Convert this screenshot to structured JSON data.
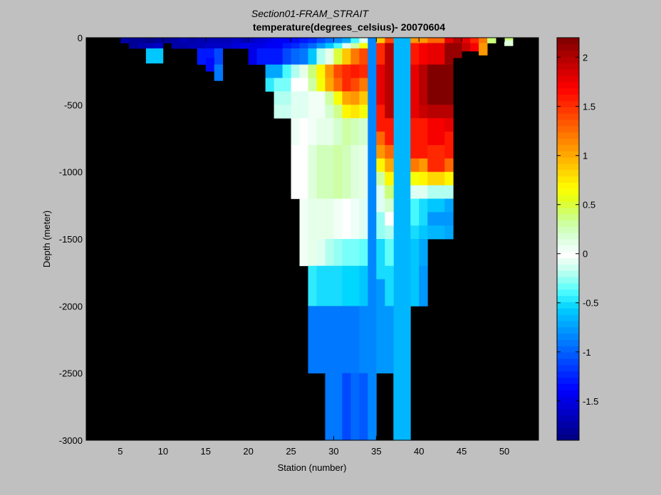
{
  "chart_data": {
    "type": "heatmap",
    "title": "Section01-FRAM_STRAIT",
    "subtitle": "temperature(degrees_celsius)- 20070604",
    "xlabel": "Station (number)",
    "ylabel": "Depth (meter)",
    "xlim": [
      1,
      54
    ],
    "ylim": [
      -3000,
      0
    ],
    "x_ticks": [
      5,
      10,
      15,
      20,
      25,
      30,
      35,
      40,
      45,
      50
    ],
    "y_ticks": [
      0,
      -500,
      -1000,
      -1500,
      -2000,
      -2500,
      -3000
    ],
    "background": "#000000",
    "colorbar": {
      "ticks": [
        2,
        1.5,
        1,
        0.5,
        0,
        -0.5,
        -1,
        -1.5
      ],
      "clim": [
        -1.9,
        2.2
      ]
    },
    "cells": [
      [
        5,
        6,
        0,
        40,
        -1.75
      ],
      [
        6,
        7,
        0,
        40,
        -1.8
      ],
      [
        7,
        8,
        0,
        40,
        -1.8
      ],
      [
        8,
        9,
        0,
        40,
        -1.85
      ],
      [
        9,
        10,
        0,
        40,
        -1.8
      ],
      [
        10,
        11,
        0,
        40,
        -1.8
      ],
      [
        11,
        12,
        0,
        40,
        -1.75
      ],
      [
        12,
        13,
        0,
        40,
        -1.7
      ],
      [
        13,
        14,
        0,
        40,
        -1.75
      ],
      [
        14,
        15,
        0,
        40,
        -1.7
      ],
      [
        15,
        16,
        0,
        40,
        -1.7
      ],
      [
        16,
        17,
        0,
        40,
        -1.7
      ],
      [
        17,
        18,
        0,
        40,
        -1.65
      ],
      [
        18,
        19,
        0,
        40,
        -1.6
      ],
      [
        19,
        20,
        0,
        40,
        -1.65
      ],
      [
        20,
        21,
        0,
        40,
        -1.6
      ],
      [
        21,
        22,
        0,
        40,
        -1.55
      ],
      [
        22,
        23,
        0,
        40,
        -1.5
      ],
      [
        23,
        24,
        0,
        40,
        -1.45
      ],
      [
        24,
        25,
        0,
        40,
        -1.4
      ],
      [
        25,
        26,
        0,
        40,
        -1.35
      ],
      [
        26,
        27,
        0,
        40,
        -1.3
      ],
      [
        27,
        28,
        0,
        40,
        -1.2
      ],
      [
        28,
        29,
        0,
        40,
        -1.1
      ],
      [
        29,
        30,
        0,
        40,
        -1.0
      ],
      [
        30,
        31,
        0,
        40,
        -0.85
      ],
      [
        31,
        32,
        0,
        40,
        -0.7
      ],
      [
        32,
        33,
        0,
        40,
        -0.4
      ],
      [
        33,
        34,
        0,
        40,
        -0.1
      ],
      [
        6,
        7,
        40,
        80,
        -1.8
      ],
      [
        7,
        8,
        40,
        80,
        -1.75
      ],
      [
        8,
        9,
        40,
        80,
        -1.7
      ],
      [
        9,
        10,
        40,
        80,
        -1.6
      ],
      [
        11,
        12,
        40,
        80,
        -1.75
      ],
      [
        12,
        13,
        40,
        80,
        -1.75
      ],
      [
        13,
        14,
        40,
        80,
        -1.7
      ],
      [
        14,
        15,
        40,
        80,
        -1.7
      ],
      [
        15,
        16,
        40,
        80,
        -1.6
      ],
      [
        16,
        17,
        40,
        80,
        -1.6
      ],
      [
        17,
        18,
        40,
        80,
        -1.6
      ],
      [
        18,
        19,
        40,
        80,
        -1.55
      ],
      [
        19,
        20,
        40,
        80,
        -1.5
      ],
      [
        20,
        21,
        40,
        80,
        -1.5
      ],
      [
        21,
        22,
        40,
        80,
        -1.5
      ],
      [
        22,
        23,
        40,
        80,
        -1.45
      ],
      [
        23,
        24,
        40,
        80,
        -1.4
      ],
      [
        24,
        25,
        40,
        80,
        -1.3
      ],
      [
        25,
        26,
        40,
        80,
        -1.2
      ],
      [
        26,
        27,
        40,
        80,
        -1.1
      ],
      [
        27,
        28,
        40,
        80,
        -0.95
      ],
      [
        28,
        29,
        40,
        80,
        -0.8
      ],
      [
        29,
        30,
        40,
        80,
        -0.6
      ],
      [
        30,
        31,
        40,
        80,
        -0.4
      ],
      [
        31,
        32,
        40,
        80,
        -0.1
      ],
      [
        32,
        33,
        40,
        80,
        0.3
      ],
      [
        33,
        34,
        40,
        80,
        0.6
      ],
      [
        8,
        10,
        80,
        190,
        -0.6
      ],
      [
        14,
        16,
        80,
        150,
        -1.3
      ],
      [
        16,
        17,
        80,
        200,
        -1.1
      ],
      [
        20,
        21,
        80,
        200,
        -1.5
      ],
      [
        21,
        24,
        80,
        200,
        -1.3
      ],
      [
        24,
        25,
        80,
        200,
        -1.1
      ],
      [
        25,
        26,
        80,
        200,
        -1.0
      ],
      [
        26,
        27,
        80,
        200,
        -0.9
      ],
      [
        27,
        28,
        80,
        200,
        -0.6
      ],
      [
        28,
        29,
        80,
        200,
        -0.2
      ],
      [
        29,
        30,
        80,
        200,
        0.1
      ],
      [
        30,
        31,
        80,
        200,
        0.5
      ],
      [
        31,
        32,
        80,
        200,
        0.9
      ],
      [
        32,
        33,
        80,
        200,
        1.2
      ],
      [
        33,
        34,
        80,
        200,
        1.4
      ],
      [
        14,
        15,
        150,
        200,
        -1.3
      ],
      [
        15,
        16,
        150,
        250,
        -1.35
      ],
      [
        16,
        17,
        200,
        320,
        -0.9
      ],
      [
        22,
        24,
        200,
        300,
        -0.7
      ],
      [
        24,
        25,
        200,
        300,
        -0.4
      ],
      [
        25,
        26,
        200,
        300,
        -0.2
      ],
      [
        26,
        27,
        200,
        300,
        0.1
      ],
      [
        27,
        28,
        200,
        300,
        0.4
      ],
      [
        28,
        29,
        200,
        300,
        0.7
      ],
      [
        29,
        30,
        200,
        300,
        1.1
      ],
      [
        30,
        31,
        200,
        300,
        1.4
      ],
      [
        31,
        32,
        200,
        300,
        1.5
      ],
      [
        32,
        33,
        200,
        300,
        1.6
      ],
      [
        33,
        34,
        200,
        300,
        1.5
      ],
      [
        22,
        23,
        300,
        400,
        -0.45
      ],
      [
        23,
        25,
        300,
        400,
        -0.3
      ],
      [
        25,
        27,
        300,
        400,
        0.0
      ],
      [
        27,
        28,
        300,
        400,
        0.3
      ],
      [
        28,
        29,
        300,
        400,
        0.6
      ],
      [
        29,
        30,
        300,
        400,
        1.0
      ],
      [
        30,
        31,
        300,
        400,
        1.3
      ],
      [
        31,
        32,
        300,
        400,
        1.5
      ],
      [
        32,
        33,
        300,
        400,
        1.4
      ],
      [
        33,
        34,
        300,
        400,
        1.2
      ],
      [
        23,
        25,
        400,
        500,
        -0.2
      ],
      [
        25,
        27,
        400,
        500,
        -0.1
      ],
      [
        27,
        29,
        400,
        500,
        0.05
      ],
      [
        29,
        30,
        400,
        500,
        0.3
      ],
      [
        30,
        31,
        400,
        500,
        0.6
      ],
      [
        31,
        32,
        400,
        500,
        1.0
      ],
      [
        32,
        33,
        400,
        500,
        1.1
      ],
      [
        33,
        34,
        400,
        500,
        0.9
      ],
      [
        23,
        25,
        500,
        600,
        -0.15
      ],
      [
        25,
        27,
        500,
        600,
        -0.1
      ],
      [
        27,
        29,
        500,
        600,
        0.05
      ],
      [
        29,
        30,
        500,
        600,
        0.2
      ],
      [
        30,
        31,
        500,
        600,
        0.35
      ],
      [
        31,
        32,
        500,
        600,
        0.7
      ],
      [
        32,
        33,
        500,
        600,
        0.75
      ],
      [
        33,
        34,
        500,
        600,
        0.6
      ],
      [
        25,
        26,
        600,
        800,
        -0.05
      ],
      [
        26,
        27,
        600,
        800,
        0.0
      ],
      [
        27,
        28,
        600,
        800,
        0.05
      ],
      [
        28,
        30,
        600,
        800,
        0.1
      ],
      [
        30,
        31,
        600,
        800,
        0.2
      ],
      [
        31,
        32,
        600,
        800,
        0.3
      ],
      [
        32,
        33,
        600,
        800,
        0.25
      ],
      [
        33,
        34,
        600,
        800,
        0.2
      ],
      [
        25,
        27,
        800,
        1200,
        0.0
      ],
      [
        27,
        28,
        800,
        1200,
        0.15
      ],
      [
        28,
        30,
        800,
        1200,
        0.25
      ],
      [
        30,
        31,
        800,
        1200,
        0.3
      ],
      [
        31,
        32,
        800,
        1200,
        0.25
      ],
      [
        32,
        33,
        800,
        1200,
        0.15
      ],
      [
        33,
        34,
        800,
        1200,
        0.1
      ],
      [
        26,
        27,
        1200,
        1700,
        0.05
      ],
      [
        27,
        28,
        1200,
        1700,
        0.1
      ],
      [
        28,
        30,
        1200,
        1500,
        0.1
      ],
      [
        30,
        31,
        1200,
        1500,
        0.05
      ],
      [
        31,
        32,
        1200,
        1500,
        0.0
      ],
      [
        32,
        33,
        1200,
        1500,
        -0.05
      ],
      [
        33,
        34,
        1200,
        1500,
        -0.1
      ],
      [
        28,
        29,
        1500,
        1700,
        -0.1
      ],
      [
        29,
        30,
        1500,
        1700,
        -0.2
      ],
      [
        30,
        31,
        1500,
        1700,
        -0.25
      ],
      [
        31,
        32,
        1500,
        1700,
        -0.3
      ],
      [
        32,
        33,
        1500,
        1700,
        -0.3
      ],
      [
        33,
        34,
        1500,
        1700,
        -0.35
      ],
      [
        27,
        28,
        1700,
        2000,
        -0.45
      ],
      [
        28,
        29,
        1700,
        2000,
        -0.5
      ],
      [
        29,
        30,
        1700,
        2000,
        -0.5
      ],
      [
        30,
        31,
        1700,
        2000,
        -0.5
      ],
      [
        31,
        32,
        1700,
        2000,
        -0.55
      ],
      [
        32,
        33,
        1700,
        2000,
        -0.55
      ],
      [
        33,
        34,
        1700,
        2000,
        -0.6
      ],
      [
        27,
        33,
        2000,
        2500,
        -0.9
      ],
      [
        33,
        34,
        2000,
        2500,
        -0.85
      ],
      [
        29,
        31,
        2500,
        3000,
        -0.9
      ],
      [
        31,
        32,
        2500,
        3000,
        -1.1
      ],
      [
        32,
        33,
        2500,
        3000,
        -1.0
      ],
      [
        33,
        34,
        2500,
        3000,
        -1.05
      ],
      [
        34,
        35,
        0,
        3000,
        -0.85
      ],
      [
        37,
        39,
        0,
        3000,
        -0.65
      ],
      [
        35,
        36,
        0,
        40,
        0.9
      ],
      [
        35,
        36,
        40,
        200,
        1.5
      ],
      [
        35,
        36,
        200,
        500,
        1.8
      ],
      [
        35,
        36,
        500,
        700,
        1.6
      ],
      [
        35,
        36,
        700,
        800,
        1.3
      ],
      [
        35,
        36,
        800,
        900,
        1.1
      ],
      [
        35,
        36,
        900,
        1000,
        0.7
      ],
      [
        35,
        36,
        1000,
        1100,
        0.3
      ],
      [
        35,
        36,
        1100,
        1300,
        -0.1
      ],
      [
        35,
        36,
        1300,
        1500,
        -0.25
      ],
      [
        35,
        36,
        1500,
        1800,
        -0.5
      ],
      [
        35,
        36,
        1800,
        2500,
        -0.8
      ],
      [
        36,
        37,
        0,
        40,
        1.4
      ],
      [
        36,
        37,
        40,
        600,
        2.0
      ],
      [
        36,
        37,
        600,
        800,
        1.6
      ],
      [
        36,
        37,
        800,
        900,
        1.3
      ],
      [
        36,
        37,
        900,
        1000,
        1.0
      ],
      [
        36,
        37,
        1000,
        1100,
        0.7
      ],
      [
        36,
        37,
        1100,
        1200,
        0.4
      ],
      [
        36,
        37,
        1200,
        1300,
        0.2
      ],
      [
        36,
        37,
        1300,
        1400,
        0.0
      ],
      [
        36,
        37,
        1400,
        1500,
        -0.2
      ],
      [
        36,
        37,
        1500,
        1700,
        -0.35
      ],
      [
        36,
        37,
        1700,
        2000,
        -0.5
      ],
      [
        36,
        37,
        2000,
        2500,
        -0.75
      ],
      [
        39,
        40,
        0,
        40,
        1.1
      ],
      [
        39,
        40,
        40,
        200,
        1.6
      ],
      [
        39,
        40,
        200,
        600,
        1.8
      ],
      [
        39,
        40,
        600,
        900,
        1.6
      ],
      [
        39,
        40,
        900,
        1000,
        1.2
      ],
      [
        39,
        40,
        1000,
        1100,
        0.6
      ],
      [
        39,
        40,
        1100,
        1200,
        -0.1
      ],
      [
        39,
        40,
        1200,
        1400,
        -0.4
      ],
      [
        39,
        40,
        1400,
        1500,
        -0.5
      ],
      [
        39,
        40,
        1500,
        2000,
        -0.6
      ],
      [
        40,
        41,
        0,
        40,
        1.1
      ],
      [
        40,
        41,
        40,
        200,
        1.7
      ],
      [
        40,
        41,
        200,
        500,
        2.0
      ],
      [
        40,
        41,
        500,
        600,
        1.9
      ],
      [
        40,
        41,
        600,
        900,
        1.6
      ],
      [
        40,
        41,
        900,
        1000,
        1.1
      ],
      [
        40,
        41,
        1000,
        1100,
        0.7
      ],
      [
        40,
        41,
        1100,
        1200,
        -0.1
      ],
      [
        40,
        41,
        1200,
        1400,
        -0.5
      ],
      [
        40,
        41,
        1400,
        1500,
        -0.6
      ],
      [
        40,
        41,
        1500,
        1700,
        -0.7
      ],
      [
        40,
        41,
        1700,
        2000,
        -0.75
      ],
      [
        41,
        43,
        0,
        40,
        1.3
      ],
      [
        41,
        43,
        40,
        200,
        1.8
      ],
      [
        41,
        43,
        200,
        500,
        2.2
      ],
      [
        41,
        43,
        500,
        600,
        2.0
      ],
      [
        41,
        43,
        600,
        800,
        1.7
      ],
      [
        41,
        43,
        800,
        1000,
        1.5
      ],
      [
        41,
        43,
        1000,
        1100,
        0.8
      ],
      [
        41,
        43,
        1100,
        1200,
        -0.2
      ],
      [
        41,
        43,
        1200,
        1300,
        -0.6
      ],
      [
        41,
        43,
        1300,
        1400,
        -0.75
      ],
      [
        41,
        43,
        1400,
        1500,
        -0.65
      ],
      [
        43,
        44,
        0,
        40,
        1.8
      ],
      [
        43,
        44,
        40,
        200,
        2.1
      ],
      [
        43,
        44,
        200,
        500,
        2.2
      ],
      [
        43,
        44,
        500,
        600,
        2.0
      ],
      [
        43,
        44,
        600,
        700,
        1.8
      ],
      [
        43,
        44,
        700,
        900,
        1.6
      ],
      [
        43,
        44,
        900,
        1000,
        1.3
      ],
      [
        43,
        44,
        1000,
        1100,
        0.7
      ],
      [
        43,
        44,
        1100,
        1200,
        -0.2
      ],
      [
        43,
        44,
        1200,
        1300,
        -0.7
      ],
      [
        43,
        44,
        1300,
        1400,
        -0.8
      ],
      [
        43,
        44,
        1400,
        1500,
        -0.7
      ],
      [
        44,
        45,
        0,
        40,
        2.0
      ],
      [
        44,
        45,
        40,
        150,
        2.1
      ],
      [
        45,
        46,
        0,
        40,
        1.8
      ],
      [
        45,
        46,
        40,
        100,
        1.9
      ],
      [
        46,
        47,
        0,
        40,
        1.5
      ],
      [
        46,
        47,
        40,
        100,
        1.7
      ],
      [
        47,
        48,
        0,
        40,
        1.2
      ],
      [
        47,
        48,
        40,
        130,
        1.1
      ],
      [
        48,
        49,
        0,
        40,
        0.4
      ],
      [
        50,
        51,
        0,
        20,
        0.4
      ],
      [
        50,
        51,
        20,
        60,
        0.15
      ]
    ]
  }
}
